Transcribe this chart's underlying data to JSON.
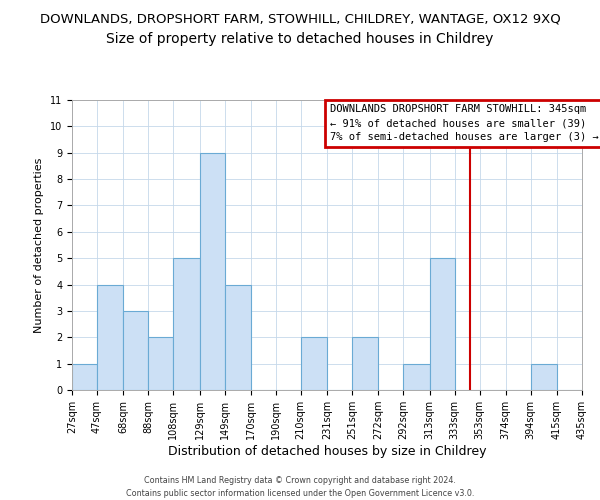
{
  "title": "DOWNLANDS, DROPSHORT FARM, STOWHILL, CHILDREY, WANTAGE, OX12 9XQ",
  "subtitle": "Size of property relative to detached houses in Childrey",
  "xlabel": "Distribution of detached houses by size in Childrey",
  "ylabel": "Number of detached properties",
  "bin_edges": [
    27,
    47,
    68,
    88,
    108,
    129,
    149,
    170,
    190,
    210,
    231,
    251,
    272,
    292,
    313,
    333,
    353,
    374,
    394,
    415,
    435
  ],
  "bin_labels": [
    "27sqm",
    "47sqm",
    "68sqm",
    "88sqm",
    "108sqm",
    "129sqm",
    "149sqm",
    "170sqm",
    "190sqm",
    "210sqm",
    "231sqm",
    "251sqm",
    "272sqm",
    "292sqm",
    "313sqm",
    "333sqm",
    "353sqm",
    "374sqm",
    "394sqm",
    "415sqm",
    "435sqm"
  ],
  "bar_heights": [
    1,
    4,
    3,
    2,
    5,
    9,
    4,
    0,
    0,
    2,
    0,
    2,
    0,
    1,
    5,
    0,
    0,
    0,
    1,
    0
  ],
  "bar_facecolor": "#cce0f5",
  "bar_edgecolor": "#6aaad4",
  "ylim": [
    0,
    11
  ],
  "yticks": [
    0,
    1,
    2,
    3,
    4,
    5,
    6,
    7,
    8,
    9,
    10,
    11
  ],
  "xlim_min": 27,
  "xlim_max": 435,
  "grid_color": "#c5d8ea",
  "property_value": 345,
  "vline_color": "#cc0000",
  "annotation_title": "DOWNLANDS DROPSHORT FARM STOWHILL: 345sqm",
  "annotation_line1": "← 91% of detached houses are smaller (39)",
  "annotation_line2": "7% of semi-detached houses are larger (3) →",
  "footer_line1": "Contains HM Land Registry data © Crown copyright and database right 2024.",
  "footer_line2": "Contains public sector information licensed under the Open Government Licence v3.0.",
  "background_color": "#ffffff",
  "title_fontsize": 9.5,
  "subtitle_fontsize": 10,
  "ylabel_fontsize": 8,
  "xlabel_fontsize": 9,
  "annot_fontsize": 7.5,
  "footer_fontsize": 5.8,
  "tick_fontsize": 7
}
